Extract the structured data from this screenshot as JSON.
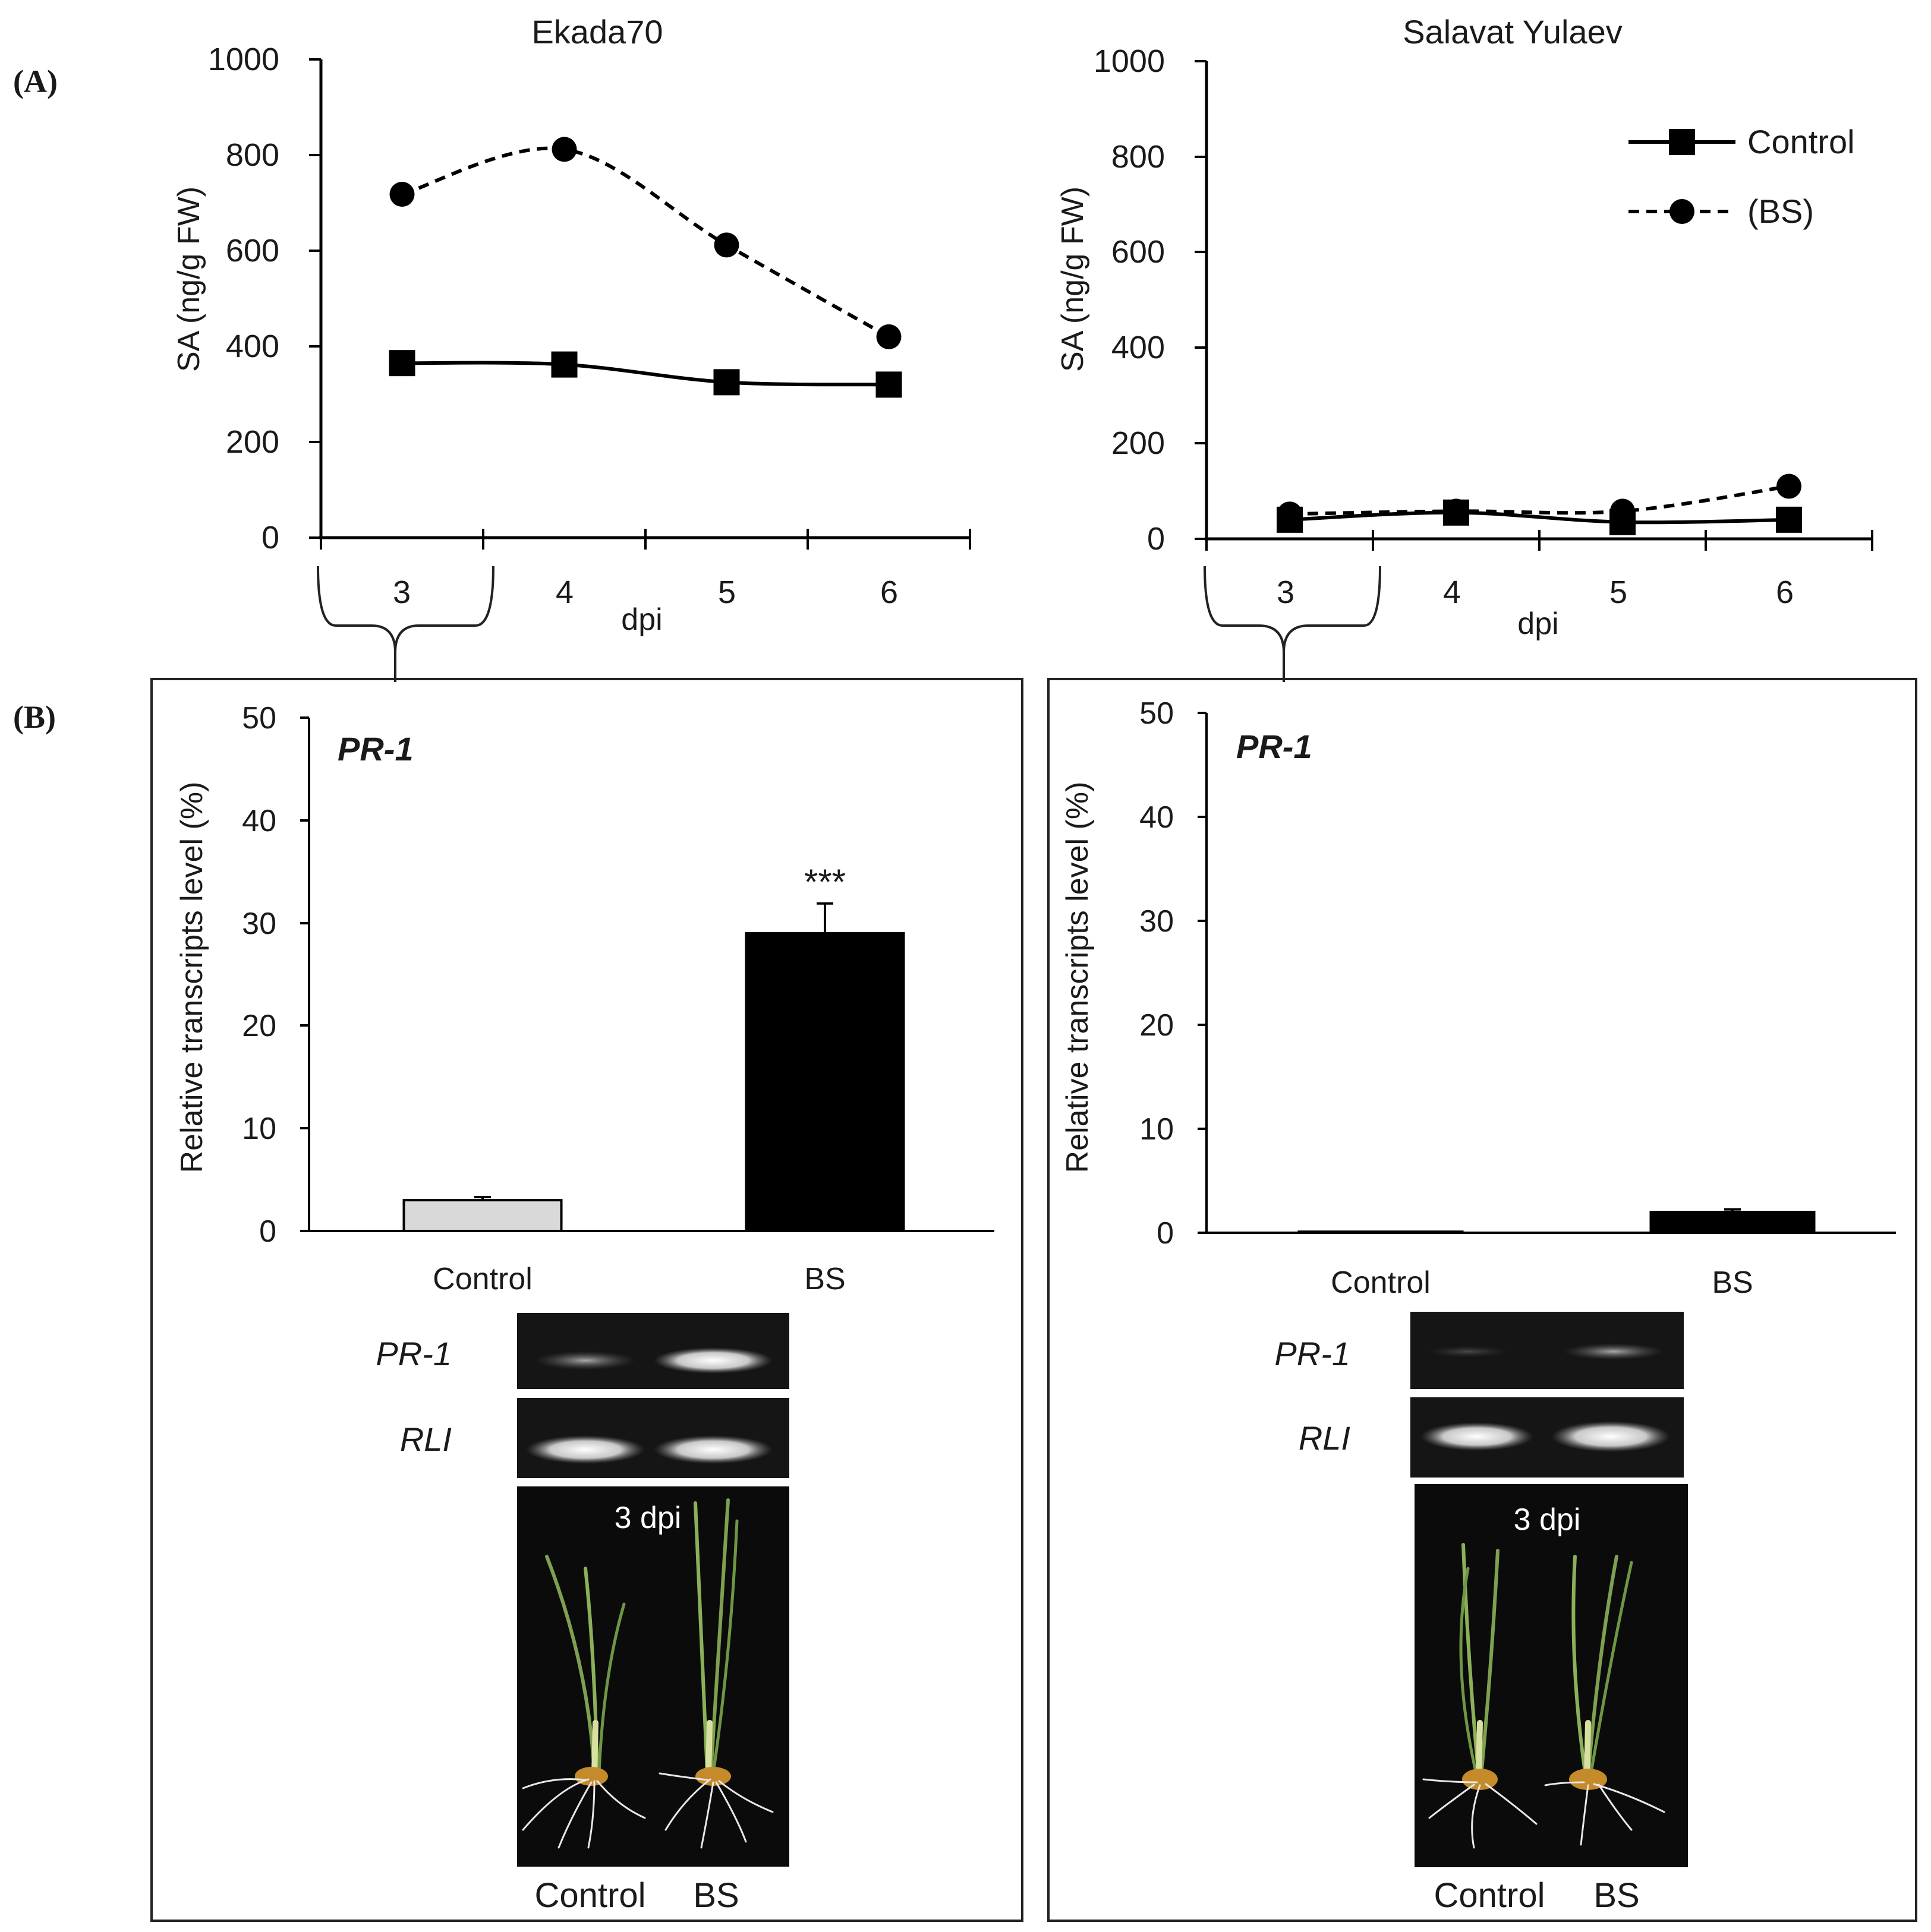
{
  "panel_labels": {
    "a": "(A)",
    "b": "(B)"
  },
  "colors": {
    "ink": "#000000",
    "control_bar": "#d9d9d9",
    "bs_bar": "#000000",
    "gel_bg": "#111111",
    "band": "#e8e8e8",
    "photo_bg": "#0a0a0a"
  },
  "chart_data": [
    {
      "type": "line",
      "title": "Ekada70",
      "xlabel": "dpi",
      "ylabel": "SA (ng/g FW)",
      "x": [
        3,
        4,
        5,
        6
      ],
      "x_ticklabels": [
        "3",
        "4",
        "5",
        "6"
      ],
      "ylim": [
        0,
        1000
      ],
      "y_ticks": [
        0,
        200,
        400,
        600,
        800,
        1000
      ],
      "grid": false,
      "series": [
        {
          "name": "Control",
          "style": "solid",
          "marker": "square",
          "values": [
            365,
            362,
            325,
            320
          ]
        },
        {
          "name": "(BS)",
          "style": "dashed",
          "marker": "circle",
          "values": [
            718,
            812,
            612,
            420
          ]
        }
      ]
    },
    {
      "type": "line",
      "title": "Salavat Yulaev",
      "xlabel": "dpi",
      "ylabel": "SA (ng/g FW)",
      "x": [
        3,
        4,
        5,
        6
      ],
      "x_ticklabels": [
        "3",
        "4",
        "5",
        "6"
      ],
      "ylim": [
        0,
        1000
      ],
      "y_ticks": [
        0,
        200,
        400,
        600,
        800,
        1000
      ],
      "grid": false,
      "legend": {
        "position": "top-right",
        "entries": [
          "Control",
          "(BS)"
        ]
      },
      "series": [
        {
          "name": "Control",
          "style": "solid",
          "marker": "square",
          "values": [
            40,
            55,
            35,
            40
          ]
        },
        {
          "name": "(BS)",
          "style": "dashed",
          "marker": "circle",
          "values": [
            52,
            58,
            58,
            110
          ]
        }
      ]
    },
    {
      "type": "bar",
      "annotation": "PR-1",
      "ylabel": "Relative transcripts level (%)",
      "categories": [
        "Control",
        "BS"
      ],
      "values": [
        3.0,
        29.0
      ],
      "errors": [
        0.3,
        2.9
      ],
      "significance": [
        "",
        "***"
      ],
      "ylim": [
        0,
        50
      ],
      "y_ticks": [
        0,
        10,
        20,
        30,
        40,
        50
      ],
      "gel_labels": [
        "PR-1",
        "RLI"
      ],
      "photo_label": "3 dpi",
      "photo_captions": [
        "Control",
        "BS"
      ]
    },
    {
      "type": "bar",
      "annotation": "PR-1",
      "ylabel": "Relative transcripts level (%)",
      "categories": [
        "Control",
        "BS"
      ],
      "values": [
        0.1,
        2.0
      ],
      "errors": [
        0.0,
        0.25
      ],
      "significance": [
        "",
        ""
      ],
      "ylim": [
        0,
        50
      ],
      "y_ticks": [
        0,
        10,
        20,
        30,
        40,
        50
      ],
      "gel_labels": [
        "PR-1",
        "RLI"
      ],
      "photo_label": "3 dpi",
      "photo_captions": [
        "Control",
        "BS"
      ]
    }
  ]
}
